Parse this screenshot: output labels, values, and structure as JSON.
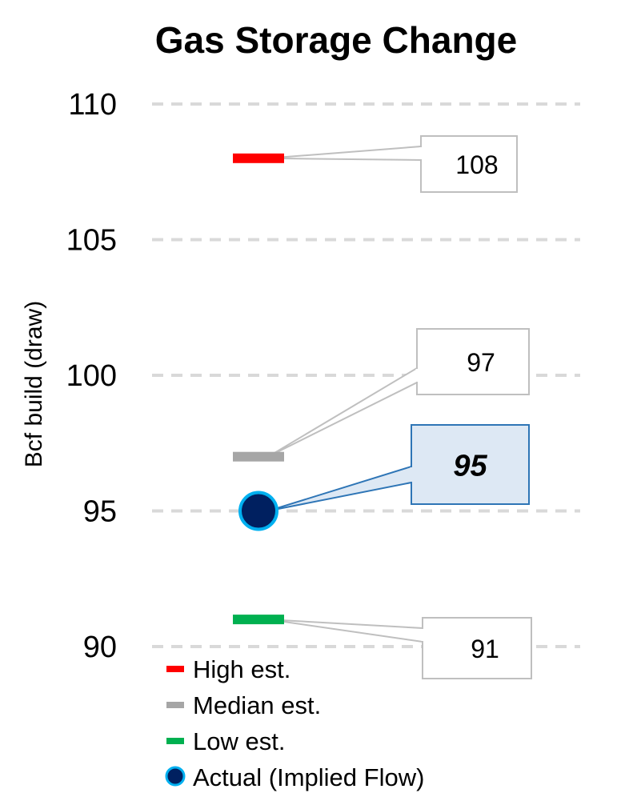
{
  "chart_data": {
    "type": "scatter",
    "title": "Gas Storage Change",
    "ylabel": "Bcf build (draw)",
    "ylim": [
      90,
      110
    ],
    "yticks": [
      90,
      95,
      100,
      105,
      110
    ],
    "grid": true,
    "legend_position": "bottom-left",
    "series": [
      {
        "name": "High est.",
        "value": 108,
        "label": "108",
        "marker": "dash",
        "color": "#ff0000"
      },
      {
        "name": "Median est.",
        "value": 97,
        "label": "97",
        "marker": "dash",
        "color": "#a6a6a6"
      },
      {
        "name": "Low est.",
        "value": 91,
        "label": "91",
        "marker": "dash",
        "color": "#00b050"
      },
      {
        "name": "Actual (Implied Flow)",
        "value": 95,
        "label": "95",
        "marker": "circle",
        "color": "#002060",
        "edge_color": "#00b0f0"
      }
    ]
  }
}
